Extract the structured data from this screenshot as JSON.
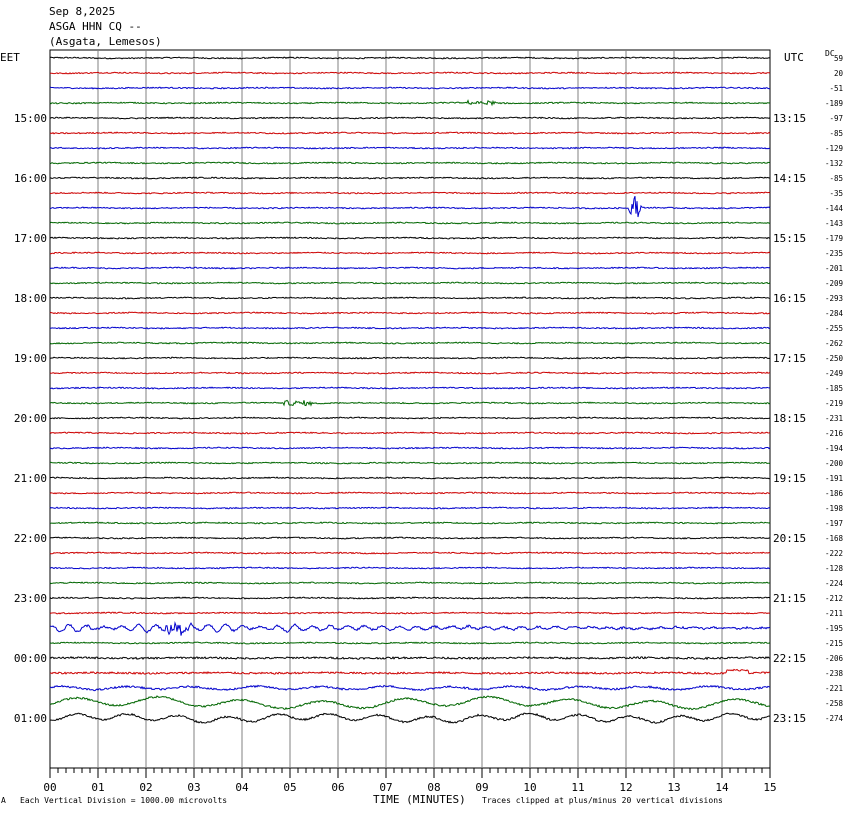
{
  "header": {
    "date": "Sep 8,2025",
    "station": "ASGA HHN CQ --",
    "location": "(Asgata, Lemesos)"
  },
  "left_tz": "EET",
  "right_tz": "UTC",
  "dc_label": "DC",
  "footer": {
    "left_mark": "A",
    "scale_note": "Each Vertical Division = 1000.00 microvolts",
    "clip_note": "Traces clipped at plus/minus 20 vertical divisions"
  },
  "chart_data": {
    "type": "line",
    "xlabel": "TIME (MINUTES)",
    "x_ticks": [
      "00",
      "01",
      "02",
      "03",
      "04",
      "05",
      "06",
      "07",
      "08",
      "09",
      "10",
      "11",
      "12",
      "13",
      "14",
      "15"
    ],
    "xlim": [
      0,
      15
    ],
    "grid": true,
    "trace_colors": [
      "#000000",
      "#cc0000",
      "#0000cc",
      "#006600"
    ],
    "left_hour_labels": [
      "15:00",
      "16:00",
      "17:00",
      "18:00",
      "19:00",
      "20:00",
      "21:00",
      "22:00",
      "23:00",
      "00:00",
      "01:00"
    ],
    "right_hour_labels": [
      "13:15",
      "14:15",
      "15:15",
      "16:15",
      "17:15",
      "18:15",
      "19:15",
      "20:15",
      "21:15",
      "22:15",
      "23:15"
    ],
    "dc_offsets": [
      59,
      20,
      -51,
      -189,
      -97,
      -85,
      -129,
      -132,
      -85,
      -35,
      -144,
      -143,
      -179,
      -235,
      -201,
      -209,
      -293,
      -284,
      -255,
      -262,
      -250,
      -249,
      -185,
      -219,
      -231,
      -216,
      -194,
      -200,
      -191,
      -186,
      -198,
      -197,
      -168,
      -222,
      -128,
      -224,
      -212,
      -211,
      -195,
      -215,
      -206,
      -238,
      -221,
      -258,
      -274
    ],
    "events": [
      {
        "trace": 10,
        "minute": 12.2,
        "amplitude": "large",
        "note": "local event"
      },
      {
        "trace": 3,
        "minute": 9.0,
        "amplitude": "small"
      },
      {
        "trace": 23,
        "minute": 5.2,
        "amplitude": "small"
      },
      {
        "trace": 38,
        "minute": 0.0,
        "amplitude": "large",
        "note": "teleseismic surface waves start"
      }
    ]
  }
}
